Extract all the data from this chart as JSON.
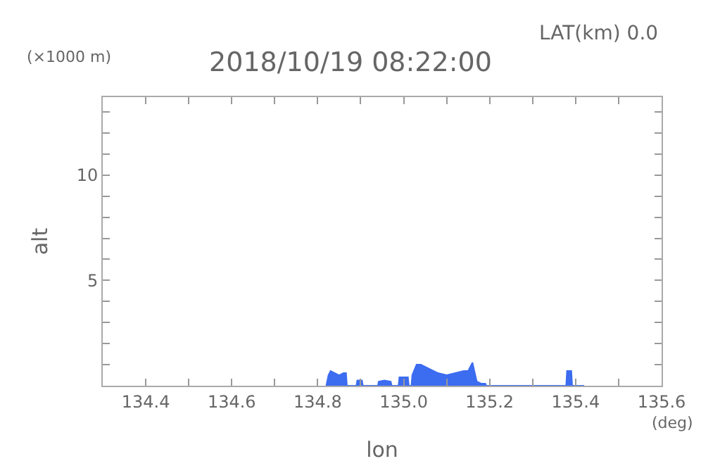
{
  "chart_data": {
    "type": "area",
    "title": "2018/10/19 08:22:00",
    "xlabel": "lon",
    "ylabel": "alt",
    "annotations": [
      "LAT(km) 0.0",
      "(×1000 m)",
      "(deg)"
    ],
    "series": [
      {
        "color": "#3c6cf0",
        "x": [
          134.82,
          134.825,
          134.83,
          134.84,
          134.85,
          134.86,
          134.866,
          134.868,
          134.89,
          134.892,
          134.903,
          134.905,
          134.94,
          134.942,
          134.955,
          134.97,
          134.972,
          134.988,
          134.99,
          135.01,
          135.012,
          135.018,
          135.02,
          135.03,
          135.04,
          135.06,
          135.08,
          135.1,
          135.12,
          135.14,
          135.15,
          135.16,
          135.17,
          135.18,
          135.19,
          135.192,
          135.378,
          135.38,
          135.39,
          135.392,
          135.42
        ],
        "values": [
          0,
          0.5,
          0.7,
          0.6,
          0.5,
          0.6,
          0.6,
          0,
          0,
          0.25,
          0.25,
          0,
          0,
          0.2,
          0.25,
          0.2,
          0,
          0,
          0.4,
          0.4,
          0,
          0,
          0.5,
          1.0,
          1.0,
          0.8,
          0.6,
          0.5,
          0.6,
          0.7,
          0.7,
          1.1,
          0.2,
          0.1,
          0.1,
          0,
          0,
          0.7,
          0.7,
          0,
          0
        ]
      }
    ],
    "xlim": [
      134.3,
      135.6
    ],
    "ylim": [
      0,
      13.7
    ],
    "xticks": [
      {
        "value": 134.3,
        "label": null
      },
      134.4,
      {
        "value": 134.5,
        "label": null
      },
      134.6,
      {
        "value": 134.7,
        "label": null
      },
      134.8,
      {
        "value": 134.9,
        "label": null
      },
      {
        "value": 135.0,
        "label": "135.0"
      },
      {
        "value": 135.1,
        "label": null
      },
      135.2,
      {
        "value": 135.3,
        "label": null
      },
      135.4,
      {
        "value": 135.5,
        "label": null
      },
      135.6
    ],
    "yticks": [
      {
        "value": 1,
        "label": null
      },
      {
        "value": 2,
        "label": null
      },
      {
        "value": 3,
        "label": null
      },
      {
        "value": 4,
        "label": null
      },
      5,
      {
        "value": 6,
        "label": null
      },
      {
        "value": 7,
        "label": null
      },
      {
        "value": 8,
        "label": null
      },
      {
        "value": 9,
        "label": null
      },
      10,
      {
        "value": 11,
        "label": null
      },
      {
        "value": 12,
        "label": null
      },
      {
        "value": 13,
        "label": null
      }
    ],
    "marker": "none"
  }
}
